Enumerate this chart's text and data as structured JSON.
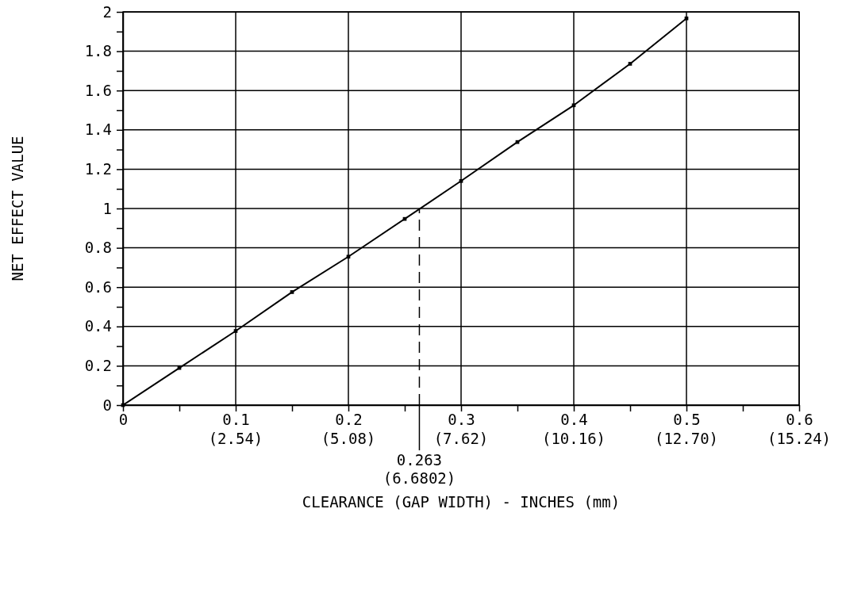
{
  "chart_data": {
    "type": "line",
    "xlabel": "CLEARANCE (GAP WIDTH) - INCHES (mm)",
    "ylabel": "NET EFFECT VALUE",
    "x": [
      0,
      0.05,
      0.1,
      0.15,
      0.2,
      0.25,
      0.3,
      0.35,
      0.4,
      0.45,
      0.5
    ],
    "series": [
      {
        "color": "#000000",
        "values": [
          0,
          0.189,
          0.377,
          0.575,
          0.755,
          0.947,
          1.14,
          1.338,
          1.525,
          1.736,
          1.967
        ]
      }
    ],
    "xlim": [
      0,
      0.6
    ],
    "ylim": [
      0,
      2
    ],
    "xticks": [
      0,
      {
        "value": 0.05,
        "label": null
      },
      0.1,
      {
        "value": 0.15,
        "label": null
      },
      0.2,
      {
        "value": 0.25,
        "label": null
      },
      0.3,
      {
        "value": 0.35,
        "label": null
      },
      0.4,
      {
        "value": 0.45,
        "label": null
      },
      0.5,
      {
        "value": 0.55,
        "label": null
      },
      0.6
    ],
    "x2lim": [
      0,
      15.24
    ],
    "x2ticks": [
      {
        "value": 2.54,
        "label": "(2.54)"
      },
      {
        "value": 5.08,
        "label": "(5.08)"
      },
      {
        "value": 7.62,
        "label": "(7.62)"
      },
      {
        "value": 10.16,
        "label": "(10.16)"
      },
      {
        "value": 12.7,
        "label": "(12.70)"
      },
      {
        "value": 15.24,
        "label": "(15.24)"
      }
    ],
    "yticks": [
      0,
      {
        "value": 0.1,
        "label": null
      },
      0.2,
      {
        "value": 0.3,
        "label": null
      },
      0.4,
      {
        "value": 0.5,
        "label": null
      },
      0.6,
      {
        "value": 0.7,
        "label": null
      },
      0.8,
      {
        "value": 0.9,
        "label": null
      },
      1,
      {
        "value": 1.1,
        "label": null
      },
      1.2,
      {
        "value": 1.3,
        "label": null
      },
      1.4,
      {
        "value": 1.5,
        "label": null
      },
      1.6,
      {
        "value": 1.7,
        "label": null
      },
      1.8,
      {
        "value": 1.9,
        "label": null
      },
      2
    ],
    "ref_lines": [
      {
        "axis": "x",
        "value": 0.263,
        "label": "0.263\n(6.6802)",
        "line_style": "dashed"
      }
    ],
    "grid": true,
    "marker": "square",
    "line_style": "solid"
  }
}
